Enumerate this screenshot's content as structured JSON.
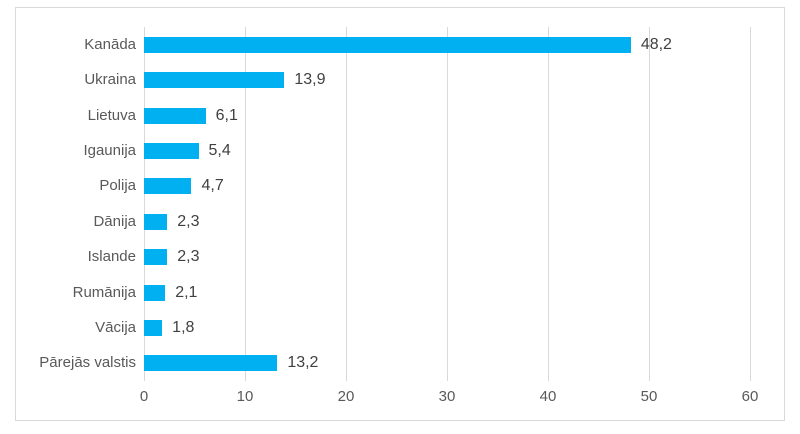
{
  "colors": {
    "bar": "#00B0F0",
    "gridline": "#D9D9D9",
    "frame_border": "#D9D9D9",
    "axis_text": "#595959",
    "value_text": "#404040",
    "background": "#FFFFFF"
  },
  "chart_data": {
    "type": "bar",
    "orientation": "horizontal",
    "title": "",
    "xlabel": "",
    "ylabel": "",
    "categories": [
      "Kanāda",
      "Ukraina",
      "Lietuva",
      "Igaunija",
      "Polija",
      "Dānija",
      "Islande",
      "Rumānija",
      "Vācija",
      "Pārejās valstis"
    ],
    "values": [
      48.2,
      13.9,
      6.1,
      5.4,
      4.7,
      2.3,
      2.3,
      2.1,
      1.8,
      13.2
    ],
    "value_labels": [
      "48,2",
      "13,9",
      "6,1",
      "5,4",
      "4,7",
      "2,3",
      "2,3",
      "2,1",
      "1,8",
      "13,2"
    ],
    "xlim": [
      0,
      60
    ],
    "x_ticks": [
      0,
      10,
      20,
      30,
      40,
      50,
      60
    ],
    "x_tick_labels": [
      "0",
      "10",
      "20",
      "30",
      "40",
      "50",
      "60"
    ],
    "grid": true,
    "legend": false,
    "data_labels": true
  }
}
